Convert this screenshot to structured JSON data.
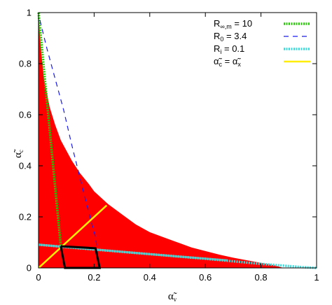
{
  "chart_data": {
    "type": "line",
    "xlabel": {
      "main": "α̃",
      "sub": "v"
    },
    "ylabel": {
      "main": "α̃",
      "sub": "c"
    },
    "xlim": [
      0,
      1
    ],
    "ylim": [
      0,
      1
    ],
    "x_ticks": [
      "0",
      "0.2",
      "0.4",
      "0.6",
      "0.8",
      "1"
    ],
    "y_ticks": [
      "0",
      "0.2",
      "0.4",
      "0.6",
      "0.8",
      "1"
    ],
    "grid": false,
    "legend_position": "top-right",
    "region": {
      "color": "#ff0000",
      "upper_boundary": [
        [
          0.0,
          1.0
        ],
        [
          0.01,
          0.84
        ],
        [
          0.02,
          0.74
        ],
        [
          0.04,
          0.63
        ],
        [
          0.06,
          0.56
        ],
        [
          0.08,
          0.5
        ],
        [
          0.1,
          0.46
        ],
        [
          0.12,
          0.42
        ],
        [
          0.15,
          0.37
        ],
        [
          0.18,
          0.33
        ],
        [
          0.2,
          0.3
        ],
        [
          0.25,
          0.25
        ],
        [
          0.3,
          0.21
        ],
        [
          0.35,
          0.17
        ],
        [
          0.4,
          0.14
        ],
        [
          0.45,
          0.12
        ],
        [
          0.5,
          0.1
        ],
        [
          0.55,
          0.08
        ],
        [
          0.6,
          0.066
        ],
        [
          0.65,
          0.052
        ],
        [
          0.7,
          0.04
        ],
        [
          0.75,
          0.03
        ],
        [
          0.8,
          0.02
        ],
        [
          0.85,
          0.01
        ],
        [
          0.88,
          0.0
        ]
      ]
    },
    "series": [
      {
        "legend_main": "R",
        "legend_sub": "∞,m",
        "legend_suffix": " = 10",
        "color": "#22cc00",
        "dash": "dotted-thick",
        "points": [
          [
            0.0,
            1.0
          ],
          [
            0.08,
            0.085
          ]
        ]
      },
      {
        "legend_main": "R",
        "legend_sub": "0",
        "legend_suffix": " = 3.4",
        "color": "#1a1aee",
        "dash": "dashed",
        "points": [
          [
            0.005,
            0.97
          ],
          [
            0.03,
            0.86
          ],
          [
            0.06,
            0.74
          ],
          [
            0.09,
            0.62
          ],
          [
            0.12,
            0.48
          ],
          [
            0.15,
            0.35
          ],
          [
            0.18,
            0.22
          ],
          [
            0.205,
            0.12
          ],
          [
            0.22,
            0.0
          ]
        ]
      },
      {
        "legend_main": "R",
        "legend_sub": "i",
        "legend_suffix": " = 0.1",
        "color": "#33dddd",
        "dash": "dotted-thick",
        "points": [
          [
            0.0,
            0.091
          ],
          [
            0.2,
            0.072
          ],
          [
            0.4,
            0.054
          ],
          [
            0.6,
            0.036
          ],
          [
            0.8,
            0.016
          ],
          [
            0.95,
            0.003
          ],
          [
            1.0,
            0.0
          ]
        ]
      },
      {
        "legend_main": "α̃",
        "legend_sub": "c",
        "legend_mid": " = α̃",
        "legend_sub2": "x",
        "color": "#ffee00",
        "dash": "solid",
        "points": [
          [
            0.0,
            0.0
          ],
          [
            0.245,
            0.245
          ]
        ]
      }
    ],
    "overlay_polygon": {
      "color": "#000000",
      "points": [
        [
          0.08,
          0.085
        ],
        [
          0.205,
          0.077
        ],
        [
          0.22,
          0.0
        ],
        [
          0.095,
          0.0
        ],
        [
          0.08,
          0.085
        ]
      ]
    },
    "grey_line": {
      "color": "#999999",
      "points": [
        [
          0.0,
          0.091
        ],
        [
          0.25,
          0.068
        ],
        [
          0.5,
          0.045
        ],
        [
          0.68,
          0.03
        ]
      ]
    }
  }
}
